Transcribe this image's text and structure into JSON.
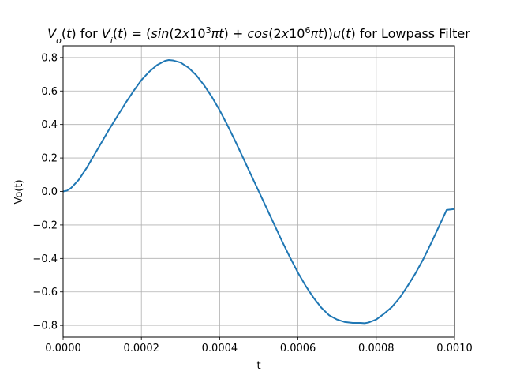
{
  "chart_data": {
    "type": "line",
    "title": {
      "parts": [
        {
          "text": "V",
          "style": "italic"
        },
        {
          "text": "o",
          "style": "italic",
          "shift": "sub"
        },
        {
          "text": "(",
          "style": "normal"
        },
        {
          "text": "t",
          "style": "italic"
        },
        {
          "text": ") for ",
          "style": "normal"
        },
        {
          "text": "V",
          "style": "italic"
        },
        {
          "text": "i",
          "style": "italic",
          "shift": "sub"
        },
        {
          "text": "(",
          "style": "normal"
        },
        {
          "text": "t",
          "style": "italic"
        },
        {
          "text": ") = (",
          "style": "normal"
        },
        {
          "text": "sin",
          "style": "italic"
        },
        {
          "text": "(2",
          "style": "normal"
        },
        {
          "text": "x",
          "style": "italic"
        },
        {
          "text": "10",
          "style": "normal"
        },
        {
          "text": "3",
          "style": "normal",
          "shift": "super"
        },
        {
          "text": "πt",
          "style": "italic"
        },
        {
          "text": ") + ",
          "style": "normal"
        },
        {
          "text": "cos",
          "style": "italic"
        },
        {
          "text": "(2",
          "style": "normal"
        },
        {
          "text": "x",
          "style": "italic"
        },
        {
          "text": "10",
          "style": "normal"
        },
        {
          "text": "6",
          "style": "normal",
          "shift": "super"
        },
        {
          "text": "πt",
          "style": "italic"
        },
        {
          "text": "))",
          "style": "normal"
        },
        {
          "text": "u",
          "style": "italic"
        },
        {
          "text": "(",
          "style": "normal"
        },
        {
          "text": "t",
          "style": "italic"
        },
        {
          "text": ")",
          "style": "normal"
        },
        {
          "text": " for Lowpass Filter",
          "style": "normal"
        }
      ]
    },
    "xlabel": "t",
    "ylabel": "Vo(t)",
    "xlim": [
      0.0,
      0.001
    ],
    "ylim": [
      -0.87,
      0.87
    ],
    "xticks": [
      "0.0000",
      "0.0002",
      "0.0004",
      "0.0006",
      "0.0008",
      "0.0010"
    ],
    "yticks": [
      "−0.8",
      "−0.6",
      "−0.4",
      "−0.2",
      "0.0",
      "0.2",
      "0.4",
      "0.6",
      "0.8"
    ],
    "xtick_values": [
      0.0,
      0.0002,
      0.0004,
      0.0006,
      0.0008,
      0.001
    ],
    "ytick_values": [
      -0.8,
      -0.6,
      -0.4,
      -0.2,
      0.0,
      0.2,
      0.4,
      0.6,
      0.8
    ],
    "grid": true,
    "line_color": "#1f77b4",
    "series": [
      {
        "x": [
          0.0,
          1e-05,
          2e-05,
          4e-05,
          6e-05,
          8e-05,
          0.0001,
          0.00012,
          0.00014,
          0.00016,
          0.00018,
          0.0002,
          0.00022,
          0.00024,
          0.00026,
          0.00027,
          0.00028,
          0.0003,
          0.00032,
          0.00034,
          0.00036,
          0.00038,
          0.0004,
          0.00042,
          0.00044,
          0.00046,
          0.00048,
          0.0005,
          0.00052,
          0.00054,
          0.00056,
          0.00058,
          0.0006,
          0.00062,
          0.00064,
          0.00066,
          0.00068,
          0.0007,
          0.00072,
          0.00074,
          0.00076,
          0.00077,
          0.00078,
          0.0008,
          0.00082,
          0.00084,
          0.00086,
          0.00088,
          0.0009,
          0.00092,
          0.00094,
          0.00096,
          0.00098,
          0.001
        ],
        "y": [
          0.0,
          0.005,
          0.02,
          0.07,
          0.14,
          0.22,
          0.3,
          0.38,
          0.455,
          0.53,
          0.6,
          0.665,
          0.715,
          0.755,
          0.78,
          0.785,
          0.783,
          0.77,
          0.74,
          0.695,
          0.635,
          0.565,
          0.485,
          0.395,
          0.3,
          0.2,
          0.1,
          0.0,
          -0.1,
          -0.2,
          -0.3,
          -0.395,
          -0.485,
          -0.565,
          -0.635,
          -0.695,
          -0.74,
          -0.765,
          -0.78,
          -0.785,
          -0.785,
          -0.787,
          -0.783,
          -0.765,
          -0.73,
          -0.69,
          -0.635,
          -0.565,
          -0.49,
          -0.405,
          -0.31,
          -0.21,
          -0.11,
          -0.105
        ]
      }
    ]
  }
}
